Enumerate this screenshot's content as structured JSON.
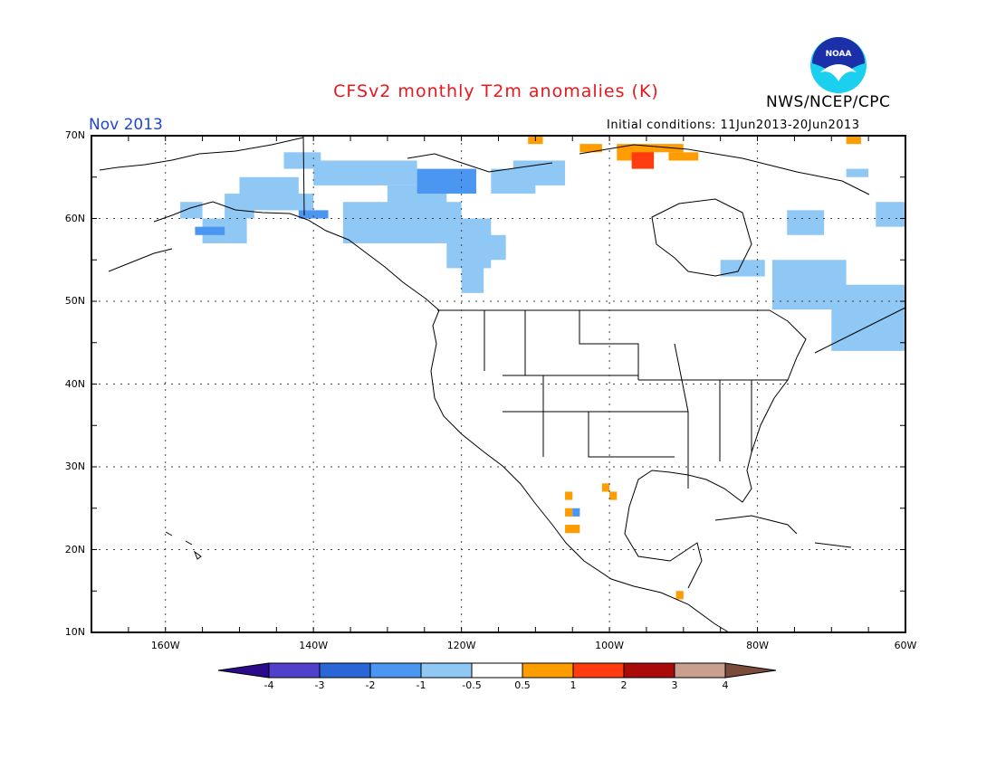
{
  "title": "CFSv2 monthly T2m anomalies (K)",
  "month": "Nov 2013",
  "agency": "NWS/NCEP/CPC",
  "logo_text": "NOAA",
  "initial_conditions": "Initial conditions: 11Jun2013-20Jun2013",
  "map": {
    "lat_labels": [
      "70N",
      "60N",
      "50N",
      "40N",
      "30N",
      "20N",
      "10N"
    ],
    "lon_labels": [
      "160W",
      "140W",
      "120W",
      "100W",
      "80W",
      "60W"
    ]
  },
  "colorbar": {
    "labels": [
      "-4",
      "-3",
      "-2",
      "-1",
      "-0.5",
      "0.5",
      "1",
      "2",
      "3",
      "4"
    ],
    "colors": [
      "#2b0a8c",
      "#5040cc",
      "#2a66d8",
      "#4a96f0",
      "#90c8f5",
      "#ffffff",
      "#ff9c00",
      "#ff3c10",
      "#a90a0a",
      "#c9a08f",
      "#7a4a3a"
    ]
  },
  "colors": {
    "neg_weak": "#90c8f5",
    "neg_mod": "#4a96f0",
    "pos_weak": "#ff9c00",
    "pos_mod": "#ff3c10"
  }
}
